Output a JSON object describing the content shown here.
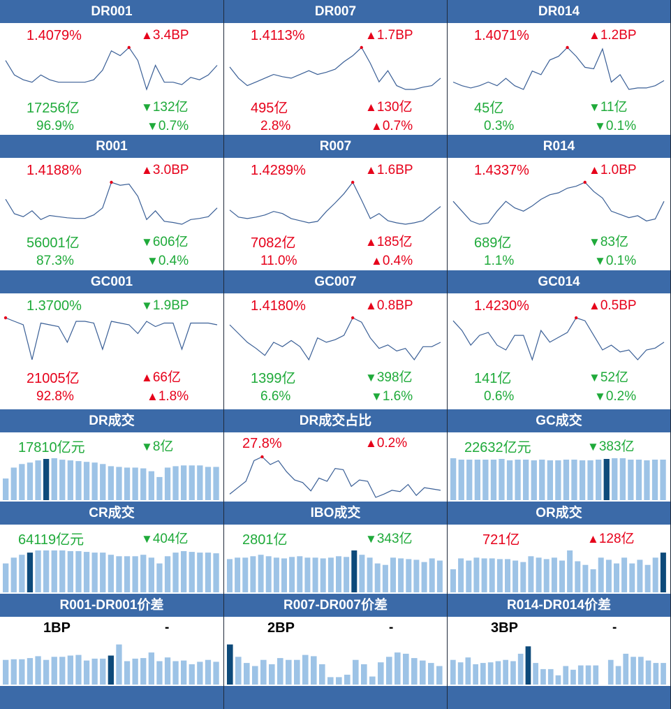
{
  "colors": {
    "header": "#3b6aa8",
    "up": "#e6001a",
    "down": "#1faa3a",
    "line": "#3a5f96",
    "bar": "#9dc3e6",
    "bar_hi": "#0d4a7a"
  },
  "rows": [
    [
      {
        "title": "DR001",
        "type": "line",
        "r1": {
          "left": "1.4079%",
          "lc": "red",
          "right": "3.4BP",
          "rdir": "up"
        },
        "r2": {
          "left": "17256亿",
          "lc": "green",
          "right": "132亿",
          "rdir": "down"
        },
        "r3": {
          "left": "96.9%",
          "lc": "green",
          "right": "0.7%",
          "rdir": "down"
        },
        "series": [
          1.38,
          1.35,
          1.34,
          1.335,
          1.35,
          1.34,
          1.335,
          1.335,
          1.335,
          1.335,
          1.34,
          1.36,
          1.4,
          1.39,
          1.407,
          1.38,
          1.32,
          1.37,
          1.335,
          1.335,
          1.33,
          1.345,
          1.34,
          1.35,
          1.37
        ],
        "peak": 14
      },
      {
        "title": "DR007",
        "type": "line",
        "r1": {
          "left": "1.4113%",
          "lc": "red",
          "right": "1.7BP",
          "rdir": "up"
        },
        "r2": {
          "left": "495亿",
          "lc": "red",
          "right": "130亿",
          "rdir": "up"
        },
        "r3": {
          "left": "2.8%",
          "lc": "red",
          "right": "0.7%",
          "rdir": "up"
        },
        "series": [
          1.385,
          1.37,
          1.36,
          1.365,
          1.37,
          1.375,
          1.372,
          1.37,
          1.375,
          1.38,
          1.375,
          1.378,
          1.382,
          1.392,
          1.4,
          1.411,
          1.39,
          1.365,
          1.38,
          1.36,
          1.355,
          1.355,
          1.358,
          1.36,
          1.37
        ],
        "peak": 15
      },
      {
        "title": "DR014",
        "type": "line",
        "r1": {
          "left": "1.4071%",
          "lc": "red",
          "right": "1.2BP",
          "rdir": "up"
        },
        "r2": {
          "left": "45亿",
          "lc": "green",
          "right": "11亿",
          "rdir": "down"
        },
        "r3": {
          "left": "0.3%",
          "lc": "green",
          "right": "0.1%",
          "rdir": "down"
        },
        "series": [
          1.36,
          1.355,
          1.352,
          1.355,
          1.36,
          1.355,
          1.365,
          1.355,
          1.35,
          1.375,
          1.37,
          1.39,
          1.395,
          1.407,
          1.395,
          1.38,
          1.378,
          1.405,
          1.36,
          1.37,
          1.35,
          1.352,
          1.352,
          1.355,
          1.362
        ],
        "peak": 13
      }
    ],
    [
      {
        "title": "R001",
        "type": "line",
        "r1": {
          "left": "1.4188%",
          "lc": "red",
          "right": "3.0BP",
          "rdir": "up"
        },
        "r2": {
          "left": "56001亿",
          "lc": "green",
          "right": "606亿",
          "rdir": "down"
        },
        "r3": {
          "left": "87.3%",
          "lc": "green",
          "right": "0.4%",
          "rdir": "down"
        },
        "series": [
          1.39,
          1.365,
          1.36,
          1.37,
          1.355,
          1.362,
          1.36,
          1.358,
          1.357,
          1.357,
          1.363,
          1.375,
          1.419,
          1.414,
          1.416,
          1.395,
          1.355,
          1.37,
          1.352,
          1.35,
          1.347,
          1.355,
          1.357,
          1.36,
          1.375
        ],
        "peak": 12
      },
      {
        "title": "R007",
        "type": "line",
        "r1": {
          "left": "1.4289%",
          "lc": "red",
          "right": "1.6BP",
          "rdir": "up"
        },
        "r2": {
          "left": "7082亿",
          "lc": "red",
          "right": "185亿",
          "rdir": "up"
        },
        "r3": {
          "left": "11.0%",
          "lc": "red",
          "right": "0.4%",
          "rdir": "up"
        },
        "series": [
          1.39,
          1.38,
          1.378,
          1.38,
          1.383,
          1.388,
          1.385,
          1.378,
          1.375,
          1.372,
          1.374,
          1.388,
          1.4,
          1.413,
          1.429,
          1.404,
          1.378,
          1.385,
          1.375,
          1.372,
          1.37,
          1.372,
          1.375,
          1.385,
          1.395
        ],
        "peak": 14
      },
      {
        "title": "R014",
        "type": "line",
        "r1": {
          "left": "1.4337%",
          "lc": "red",
          "right": "1.0BP",
          "rdir": "up"
        },
        "r2": {
          "left": "689亿",
          "lc": "green",
          "right": "83亿",
          "rdir": "down"
        },
        "r3": {
          "left": "1.1%",
          "lc": "green",
          "right": "0.1%",
          "rdir": "down"
        },
        "series": [
          1.405,
          1.39,
          1.375,
          1.37,
          1.372,
          1.39,
          1.405,
          1.395,
          1.39,
          1.398,
          1.408,
          1.415,
          1.418,
          1.425,
          1.428,
          1.434,
          1.42,
          1.41,
          1.39,
          1.385,
          1.38,
          1.383,
          1.375,
          1.378,
          1.405
        ],
        "peak": 15
      }
    ],
    [
      {
        "title": "GC001",
        "type": "line",
        "r1": {
          "left": "1.3700%",
          "lc": "green",
          "right": "1.9BP",
          "rdir": "down"
        },
        "r2": {
          "left": "21005亿",
          "lc": "red",
          "right": "66亿",
          "rdir": "up"
        },
        "r3": {
          "left": "92.8%",
          "lc": "red",
          "right": "1.8%",
          "rdir": "up"
        },
        "series": [
          1.37,
          1.36,
          1.35,
          1.25,
          1.355,
          1.35,
          1.345,
          1.3,
          1.36,
          1.36,
          1.355,
          1.28,
          1.36,
          1.355,
          1.35,
          1.325,
          1.36,
          1.345,
          1.355,
          1.355,
          1.28,
          1.355,
          1.355,
          1.355,
          1.35
        ],
        "peak": 0
      },
      {
        "title": "GC007",
        "type": "line",
        "r1": {
          "left": "1.4180%",
          "lc": "red",
          "right": "0.8BP",
          "rdir": "up"
        },
        "r2": {
          "left": "1399亿",
          "lc": "green",
          "right": "398亿",
          "rdir": "down"
        },
        "r3": {
          "left": "6.6%",
          "lc": "green",
          "right": "1.6%",
          "rdir": "down"
        },
        "series": [
          1.41,
          1.4,
          1.39,
          1.383,
          1.375,
          1.39,
          1.385,
          1.392,
          1.385,
          1.37,
          1.395,
          1.39,
          1.393,
          1.398,
          1.418,
          1.413,
          1.395,
          1.383,
          1.387,
          1.38,
          1.383,
          1.37,
          1.385,
          1.385,
          1.39
        ],
        "peak": 14
      },
      {
        "title": "GC014",
        "type": "line",
        "r1": {
          "left": "1.4230%",
          "lc": "red",
          "right": "0.5BP",
          "rdir": "up"
        },
        "r2": {
          "left": "141亿",
          "lc": "green",
          "right": "52亿",
          "rdir": "down"
        },
        "r3": {
          "left": "0.6%",
          "lc": "green",
          "right": "0.2%",
          "rdir": "down"
        },
        "series": [
          1.42,
          1.41,
          1.395,
          1.405,
          1.408,
          1.395,
          1.39,
          1.405,
          1.405,
          1.38,
          1.41,
          1.398,
          1.403,
          1.408,
          1.423,
          1.42,
          1.405,
          1.39,
          1.395,
          1.388,
          1.39,
          1.38,
          1.39,
          1.392,
          1.398
        ],
        "peak": 14
      }
    ]
  ],
  "row4": [
    {
      "title": "DR成交",
      "type": "bar",
      "l": {
        "text": "17810亿元",
        "lc": "green"
      },
      "r": {
        "text": "8亿",
        "rdir": "down"
      },
      "series": [
        30,
        45,
        50,
        52,
        55,
        57,
        58,
        56,
        55,
        54,
        53,
        52,
        50,
        47,
        46,
        45,
        45,
        44,
        40,
        32,
        45,
        47,
        48,
        48,
        48,
        46,
        46
      ],
      "hi": 5
    },
    {
      "title": "DR成交占比",
      "type": "line",
      "l": {
        "text": "27.8%",
        "lc": "red"
      },
      "r": {
        "text": "0.2%",
        "rdir": "up"
      },
      "series": [
        22,
        23,
        24,
        27.2,
        27.8,
        26.6,
        27.2,
        25.5,
        24.2,
        23.8,
        22.5,
        24.5,
        24,
        26,
        25.8,
        23.2,
        24.2,
        24,
        21.5,
        22,
        22.6,
        22.4,
        23.5,
        21.8,
        23,
        22.8,
        22.6
      ],
      "peak": 4
    },
    {
      "title": "GC成交",
      "type": "bar",
      "l": {
        "text": "22632亿元",
        "lc": "green"
      },
      "r": {
        "text": "383亿",
        "rdir": "down"
      },
      "series": [
        60,
        58,
        58,
        58,
        58,
        58,
        59,
        57,
        58,
        58,
        57,
        58,
        57,
        57,
        58,
        58,
        57,
        57,
        58,
        59,
        60,
        60,
        58,
        58,
        57,
        58,
        58
      ],
      "hi": 19
    }
  ],
  "row5": [
    {
      "title": "CR成交",
      "type": "bar",
      "l": {
        "text": "64119亿元",
        "lc": "green"
      },
      "r": {
        "text": "404亿",
        "rdir": "down"
      },
      "series": [
        40,
        48,
        52,
        55,
        58,
        58,
        58,
        58,
        57,
        57,
        56,
        55,
        55,
        52,
        50,
        50,
        50,
        52,
        48,
        40,
        50,
        55,
        57,
        56,
        55,
        55,
        54
      ],
      "hi": 3
    },
    {
      "title": "IBO成交",
      "type": "bar",
      "l": {
        "text": "2801亿",
        "lc": "green"
      },
      "r": {
        "text": "343亿",
        "rdir": "down"
      },
      "series": [
        46,
        48,
        48,
        50,
        52,
        50,
        48,
        47,
        49,
        50,
        48,
        48,
        47,
        48,
        50,
        49,
        58,
        52,
        48,
        40,
        38,
        48,
        47,
        46,
        45,
        42,
        47,
        44
      ],
      "hi": 16
    },
    {
      "title": "OR成交",
      "type": "bar",
      "l": {
        "text": "721亿",
        "lc": "red"
      },
      "r": {
        "text": "128亿",
        "rdir": "up"
      },
      "series": [
        32,
        47,
        44,
        48,
        47,
        47,
        46,
        46,
        44,
        42,
        50,
        48,
        46,
        48,
        44,
        58,
        43,
        38,
        32,
        48,
        45,
        40,
        48,
        40,
        45,
        38,
        48,
        55
      ],
      "hi": 27
    }
  ],
  "row6": [
    {
      "title": "R001-DR001价差",
      "type": "bar",
      "l": {
        "text": "1BP",
        "lc": "black"
      },
      "r": {
        "text": "-"
      },
      "series": [
        4,
        4.1,
        4.1,
        4.3,
        4.6,
        4,
        4.5,
        4.5,
        4.7,
        4.8,
        3.9,
        4.2,
        4.2,
        4.7,
        6.5,
        3.8,
        4.2,
        4.3,
        5.2,
        3.8,
        4.4,
        3.8,
        3.9,
        3.3,
        3.7,
        4,
        3.7
      ],
      "hi": 13
    },
    {
      "title": "R007-DR007价差",
      "type": "bar",
      "l": {
        "text": "2BP",
        "lc": "black"
      },
      "r": {
        "text": "-"
      },
      "series": [
        6.5,
        4.5,
        3.5,
        3,
        4,
        3.3,
        4.3,
        4,
        4,
        4.8,
        4.6,
        3.3,
        1.2,
        1.2,
        1.6,
        4,
        3.3,
        1.3,
        3.6,
        4.5,
        5.2,
        5,
        4.3,
        3.9,
        3.5,
        3
      ],
      "hi": 0
    },
    {
      "title": "R014-DR014价差",
      "type": "bar",
      "l": {
        "text": "3BP",
        "lc": "black"
      },
      "r": {
        "text": "-"
      },
      "series": [
        4,
        3.6,
        4.4,
        3.3,
        3.5,
        3.6,
        3.8,
        4,
        3.8,
        5,
        6.2,
        3.5,
        2.5,
        2.5,
        1.5,
        3,
        2.4,
        3.1,
        3.1,
        3.1,
        null,
        4,
        3,
        5,
        4.5,
        4.5,
        3.9,
        3.5,
        3.5
      ],
      "hi": 10
    }
  ]
}
